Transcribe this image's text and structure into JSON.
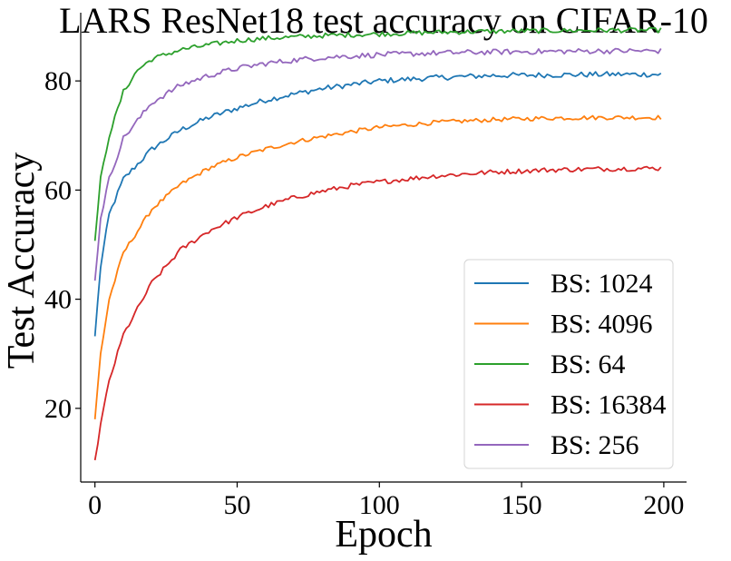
{
  "chart_data": {
    "type": "line",
    "title": "LARS ResNet18 test accuracy on CIFAR-10",
    "xlabel": "Epoch",
    "ylabel": "Test Accuracy",
    "xlim": [
      -5,
      208
    ],
    "ylim": [
      6.5,
      92.5
    ],
    "xticks": [
      0,
      50,
      100,
      150,
      200
    ],
    "yticks": [
      20,
      40,
      60,
      80
    ],
    "grid": false,
    "legend_position": "lower-right",
    "epochs": 200,
    "series": [
      {
        "name": "BS: 1024",
        "color": "#1f77b4",
        "points": [
          [
            0,
            33.2
          ],
          [
            2,
            46
          ],
          [
            5,
            55.5
          ],
          [
            10,
            62
          ],
          [
            20,
            67.5
          ],
          [
            30,
            71
          ],
          [
            40,
            73.3
          ],
          [
            50,
            75
          ],
          [
            60,
            76.5
          ],
          [
            70,
            77.6
          ],
          [
            80,
            78.6
          ],
          [
            90,
            79.3
          ],
          [
            100,
            80
          ],
          [
            120,
            80.6
          ],
          [
            140,
            81
          ],
          [
            160,
            81.1
          ],
          [
            180,
            81.2
          ],
          [
            199,
            81.2
          ]
        ],
        "noise": 0.5
      },
      {
        "name": "BS: 4096",
        "color": "#ff7f0e",
        "points": [
          [
            0,
            18
          ],
          [
            2,
            30
          ],
          [
            5,
            40
          ],
          [
            10,
            48.5
          ],
          [
            20,
            56.5
          ],
          [
            30,
            61
          ],
          [
            40,
            64
          ],
          [
            50,
            66
          ],
          [
            60,
            67.5
          ],
          [
            70,
            68.8
          ],
          [
            80,
            69.8
          ],
          [
            90,
            70.7
          ],
          [
            100,
            71.5
          ],
          [
            120,
            72.4
          ],
          [
            140,
            72.9
          ],
          [
            160,
            73.2
          ],
          [
            180,
            73.3
          ],
          [
            199,
            73.3
          ]
        ],
        "noise": 0.4
      },
      {
        "name": "BS: 64",
        "color": "#2ca02c",
        "points": [
          [
            0,
            50.7
          ],
          [
            2,
            62
          ],
          [
            5,
            70
          ],
          [
            10,
            78
          ],
          [
            15,
            82
          ],
          [
            20,
            84
          ],
          [
            30,
            85.7
          ],
          [
            40,
            86.6
          ],
          [
            50,
            87.4
          ],
          [
            60,
            87.8
          ],
          [
            80,
            88.3
          ],
          [
            100,
            88.6
          ],
          [
            120,
            88.9
          ],
          [
            140,
            89.1
          ],
          [
            160,
            89.2
          ],
          [
            180,
            89.3
          ],
          [
            199,
            89.3
          ]
        ],
        "noise": 0.45
      },
      {
        "name": "BS: 16384",
        "color": "#d62728",
        "points": [
          [
            0,
            10.5
          ],
          [
            2,
            17
          ],
          [
            5,
            25
          ],
          [
            10,
            33.5
          ],
          [
            20,
            43
          ],
          [
            30,
            49
          ],
          [
            40,
            52.5
          ],
          [
            50,
            55
          ],
          [
            60,
            57
          ],
          [
            70,
            58.6
          ],
          [
            80,
            59.8
          ],
          [
            90,
            60.8
          ],
          [
            100,
            61.5
          ],
          [
            120,
            62.6
          ],
          [
            140,
            63.3
          ],
          [
            160,
            63.7
          ],
          [
            180,
            63.9
          ],
          [
            199,
            64
          ]
        ],
        "noise": 0.45
      },
      {
        "name": "BS: 256",
        "color": "#9467bd",
        "points": [
          [
            0,
            43.4
          ],
          [
            2,
            55
          ],
          [
            5,
            62
          ],
          [
            10,
            69.5
          ],
          [
            20,
            76
          ],
          [
            30,
            79.2
          ],
          [
            40,
            81
          ],
          [
            50,
            82.3
          ],
          [
            60,
            83.2
          ],
          [
            70,
            83.8
          ],
          [
            80,
            84.3
          ],
          [
            100,
            84.8
          ],
          [
            120,
            85.1
          ],
          [
            140,
            85.3
          ],
          [
            160,
            85.4
          ],
          [
            180,
            85.5
          ],
          [
            199,
            85.5
          ]
        ],
        "noise": 0.5
      }
    ]
  }
}
